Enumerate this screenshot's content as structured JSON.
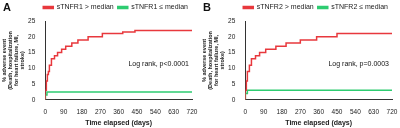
{
  "chart_data": [
    {
      "type": "line",
      "title": "A",
      "x_label": "Time elapsed (days)",
      "y_label": "% adverse event",
      "y_sublabel": "(Death, hospitalization for heart failure, MI, stroke)",
      "annotations": [
        "Log rank, p<0.0001"
      ],
      "xlim": [
        0,
        720
      ],
      "xticks": [
        0,
        90,
        180,
        270,
        360,
        450,
        540,
        630,
        720
      ],
      "ylim": [
        0,
        25
      ],
      "yticks": [
        0,
        5,
        10,
        15,
        20,
        25
      ],
      "grid": false,
      "legend": "top",
      "line_style": "steps",
      "series": [
        {
          "name": "sTNFR1 > median",
          "color": "#e8383d",
          "x": [
            0,
            5,
            10,
            15,
            20,
            30,
            45,
            60,
            80,
            100,
            130,
            160,
            210,
            280,
            380,
            440,
            630,
            720
          ],
          "values": [
            0,
            3,
            6,
            8,
            9,
            11,
            13,
            14,
            15,
            16,
            17,
            18,
            19,
            20,
            21,
            21.5,
            22,
            22
          ]
        },
        {
          "name": "sTNFR1 ≤ median",
          "color": "#2ecc71",
          "x": [
            0,
            8,
            20,
            720
          ],
          "values": [
            0,
            1.5,
            2.5,
            2.5
          ]
        }
      ]
    },
    {
      "type": "line",
      "title": "B",
      "x_label": "Time elapsed (days)",
      "y_label": "% adverse event",
      "y_sublabel": "(Death, hospitalization for heart failure, MI, stroke)",
      "annotations": [
        "Log rank, p=0.0003"
      ],
      "xlim": [
        0,
        720
      ],
      "xticks": [
        0,
        90,
        180,
        270,
        360,
        450,
        540,
        630,
        720
      ],
      "ylim": [
        0,
        25
      ],
      "yticks": [
        0,
        5,
        10,
        15,
        20,
        25
      ],
      "grid": false,
      "legend": "top",
      "line_style": "steps",
      "series": [
        {
          "name": "sTNFR2 > median",
          "color": "#e8383d",
          "x": [
            0,
            5,
            10,
            20,
            30,
            50,
            70,
            100,
            150,
            200,
            270,
            350,
            450,
            600,
            720
          ],
          "values": [
            0,
            3,
            6,
            9,
            11,
            13,
            14,
            15,
            16,
            17,
            18,
            19,
            20,
            21,
            21
          ]
        },
        {
          "name": "sTNFR2 ≤ median",
          "color": "#2ecc71",
          "x": [
            0,
            10,
            20,
            720
          ],
          "values": [
            0,
            2,
            3,
            3
          ]
        }
      ]
    }
  ]
}
